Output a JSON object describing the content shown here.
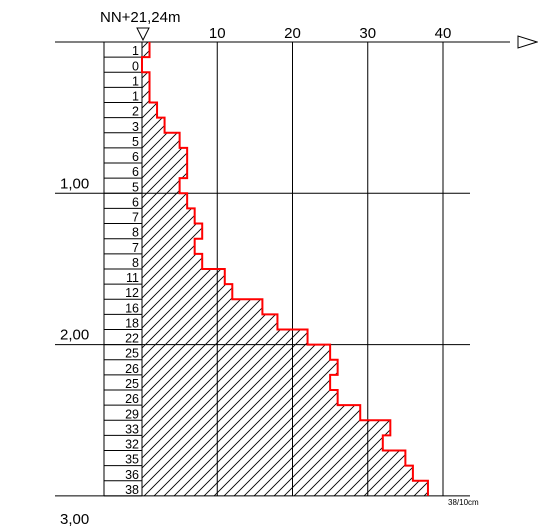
{
  "chart_data": {
    "type": "bar",
    "orientation": "horizontal-step",
    "title": "NN+21,24m",
    "xlabel": "",
    "ylabel": "",
    "units_note": "38/10cm",
    "xlim": [
      0,
      40
    ],
    "x_ticks": [
      "10",
      "20",
      "30",
      "40"
    ],
    "x_tick_values": [
      10,
      20,
      30,
      40
    ],
    "ylim": [
      0,
      3.0
    ],
    "y_ticks": [
      "1,00",
      "2,00",
      "3,00"
    ],
    "y_tick_values": [
      1.0,
      2.0,
      3.0
    ],
    "interval_m": 0.1,
    "values": [
      1,
      0,
      1,
      1,
      2,
      3,
      5,
      6,
      6,
      5,
      6,
      7,
      8,
      7,
      8,
      11,
      12,
      16,
      18,
      22,
      25,
      26,
      25,
      26,
      29,
      33,
      32,
      35,
      36,
      38
    ],
    "step_color": "#ff0000",
    "grid": true
  }
}
